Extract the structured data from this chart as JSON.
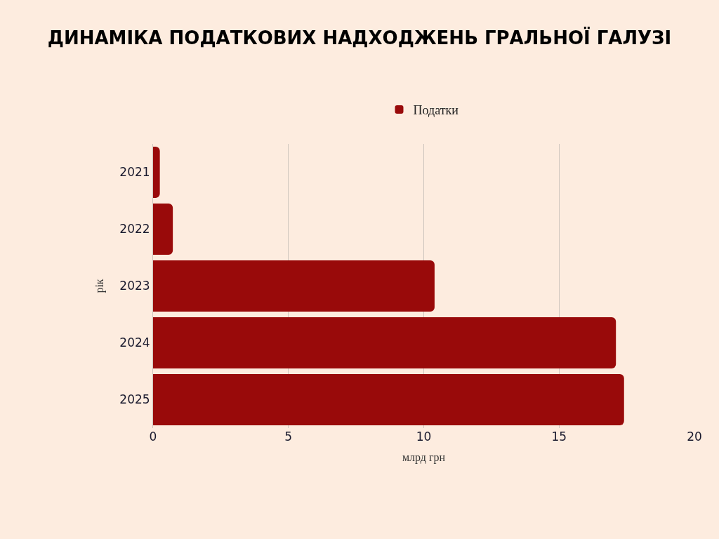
{
  "chart_data": {
    "type": "bar",
    "orientation": "horizontal",
    "title": "ДИНАМІКА ПОДАТКОВИХ НАДХОДЖЕНЬ ГРАЛЬНОЇ ГАЛУЗІ",
    "xlabel": "млрд грн",
    "ylabel": "рік",
    "categories": [
      "2021",
      "2022",
      "2023",
      "2024",
      "2025"
    ],
    "series": [
      {
        "name": "Податки",
        "color": "#990a0a",
        "values": [
          0.25,
          0.73,
          10.4,
          17.1,
          17.4
        ]
      }
    ],
    "xlim": [
      0,
      20
    ],
    "xticks": [
      0,
      5,
      10,
      15,
      20
    ],
    "grid": "x",
    "legend": "top"
  }
}
